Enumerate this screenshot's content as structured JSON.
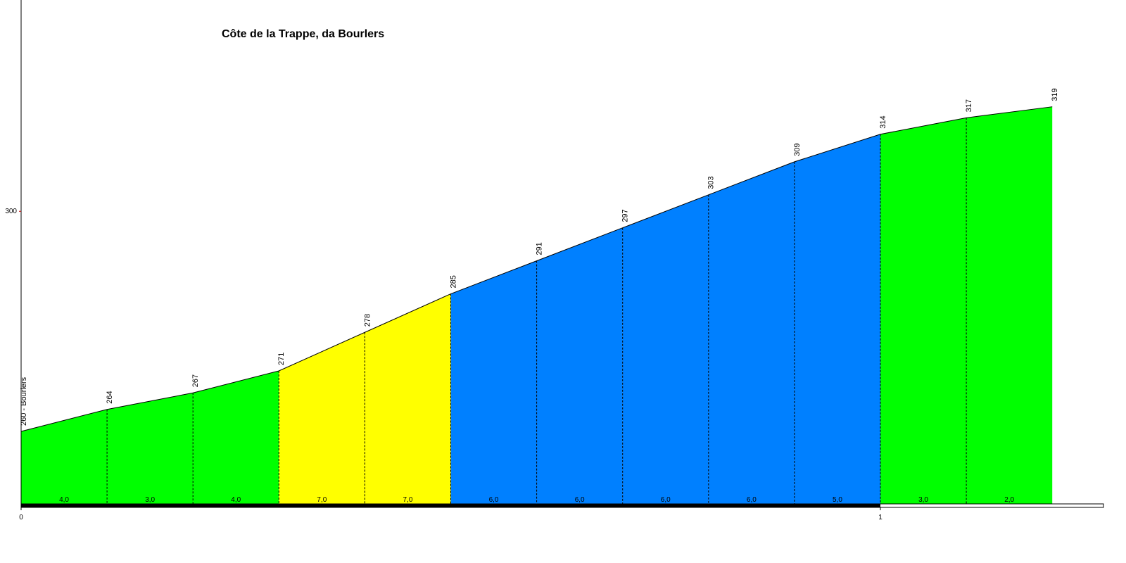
{
  "chart_data": {
    "type": "profile",
    "title": "Côte de la Trappe, da Bourlers",
    "x": [
      0,
      0.1,
      0.2,
      0.3,
      0.4,
      0.5,
      0.6,
      0.7,
      0.8,
      0.9,
      1.0,
      1.1,
      1.2
    ],
    "series": [
      {
        "values": [
          260,
          264,
          267,
          271,
          278,
          285,
          291,
          297,
          303,
          309,
          314,
          317,
          319
        ],
        "value_labels": [
          "260 - Bourlers",
          "264",
          "267",
          "271",
          "278",
          "285",
          "291",
          "297",
          "303",
          "309",
          "314",
          "317",
          "319"
        ]
      }
    ],
    "segments": {
      "values": [
        4,
        3,
        4,
        7,
        7,
        6,
        6,
        6,
        6,
        5,
        3,
        2
      ],
      "value_labels": [
        "4,0",
        "3,0",
        "4,0",
        "7,0",
        "7,0",
        "6,0",
        "6,0",
        "6,0",
        "6,0",
        "5,0",
        "3,0",
        "2,0"
      ],
      "colors": [
        "#00ff00",
        "#00ff00",
        "#00ff00",
        "#ffff00",
        "#ffff00",
        "#0080ff",
        "#0080ff",
        "#0080ff",
        "#0080ff",
        "#0080ff",
        "#00ff00",
        "#00ff00"
      ]
    },
    "xlim": [
      0,
      1.2852
    ],
    "xticks": [
      0,
      1
    ],
    "ylim": [
      246.7,
      338.4
    ],
    "yticks": [
      300
    ]
  }
}
